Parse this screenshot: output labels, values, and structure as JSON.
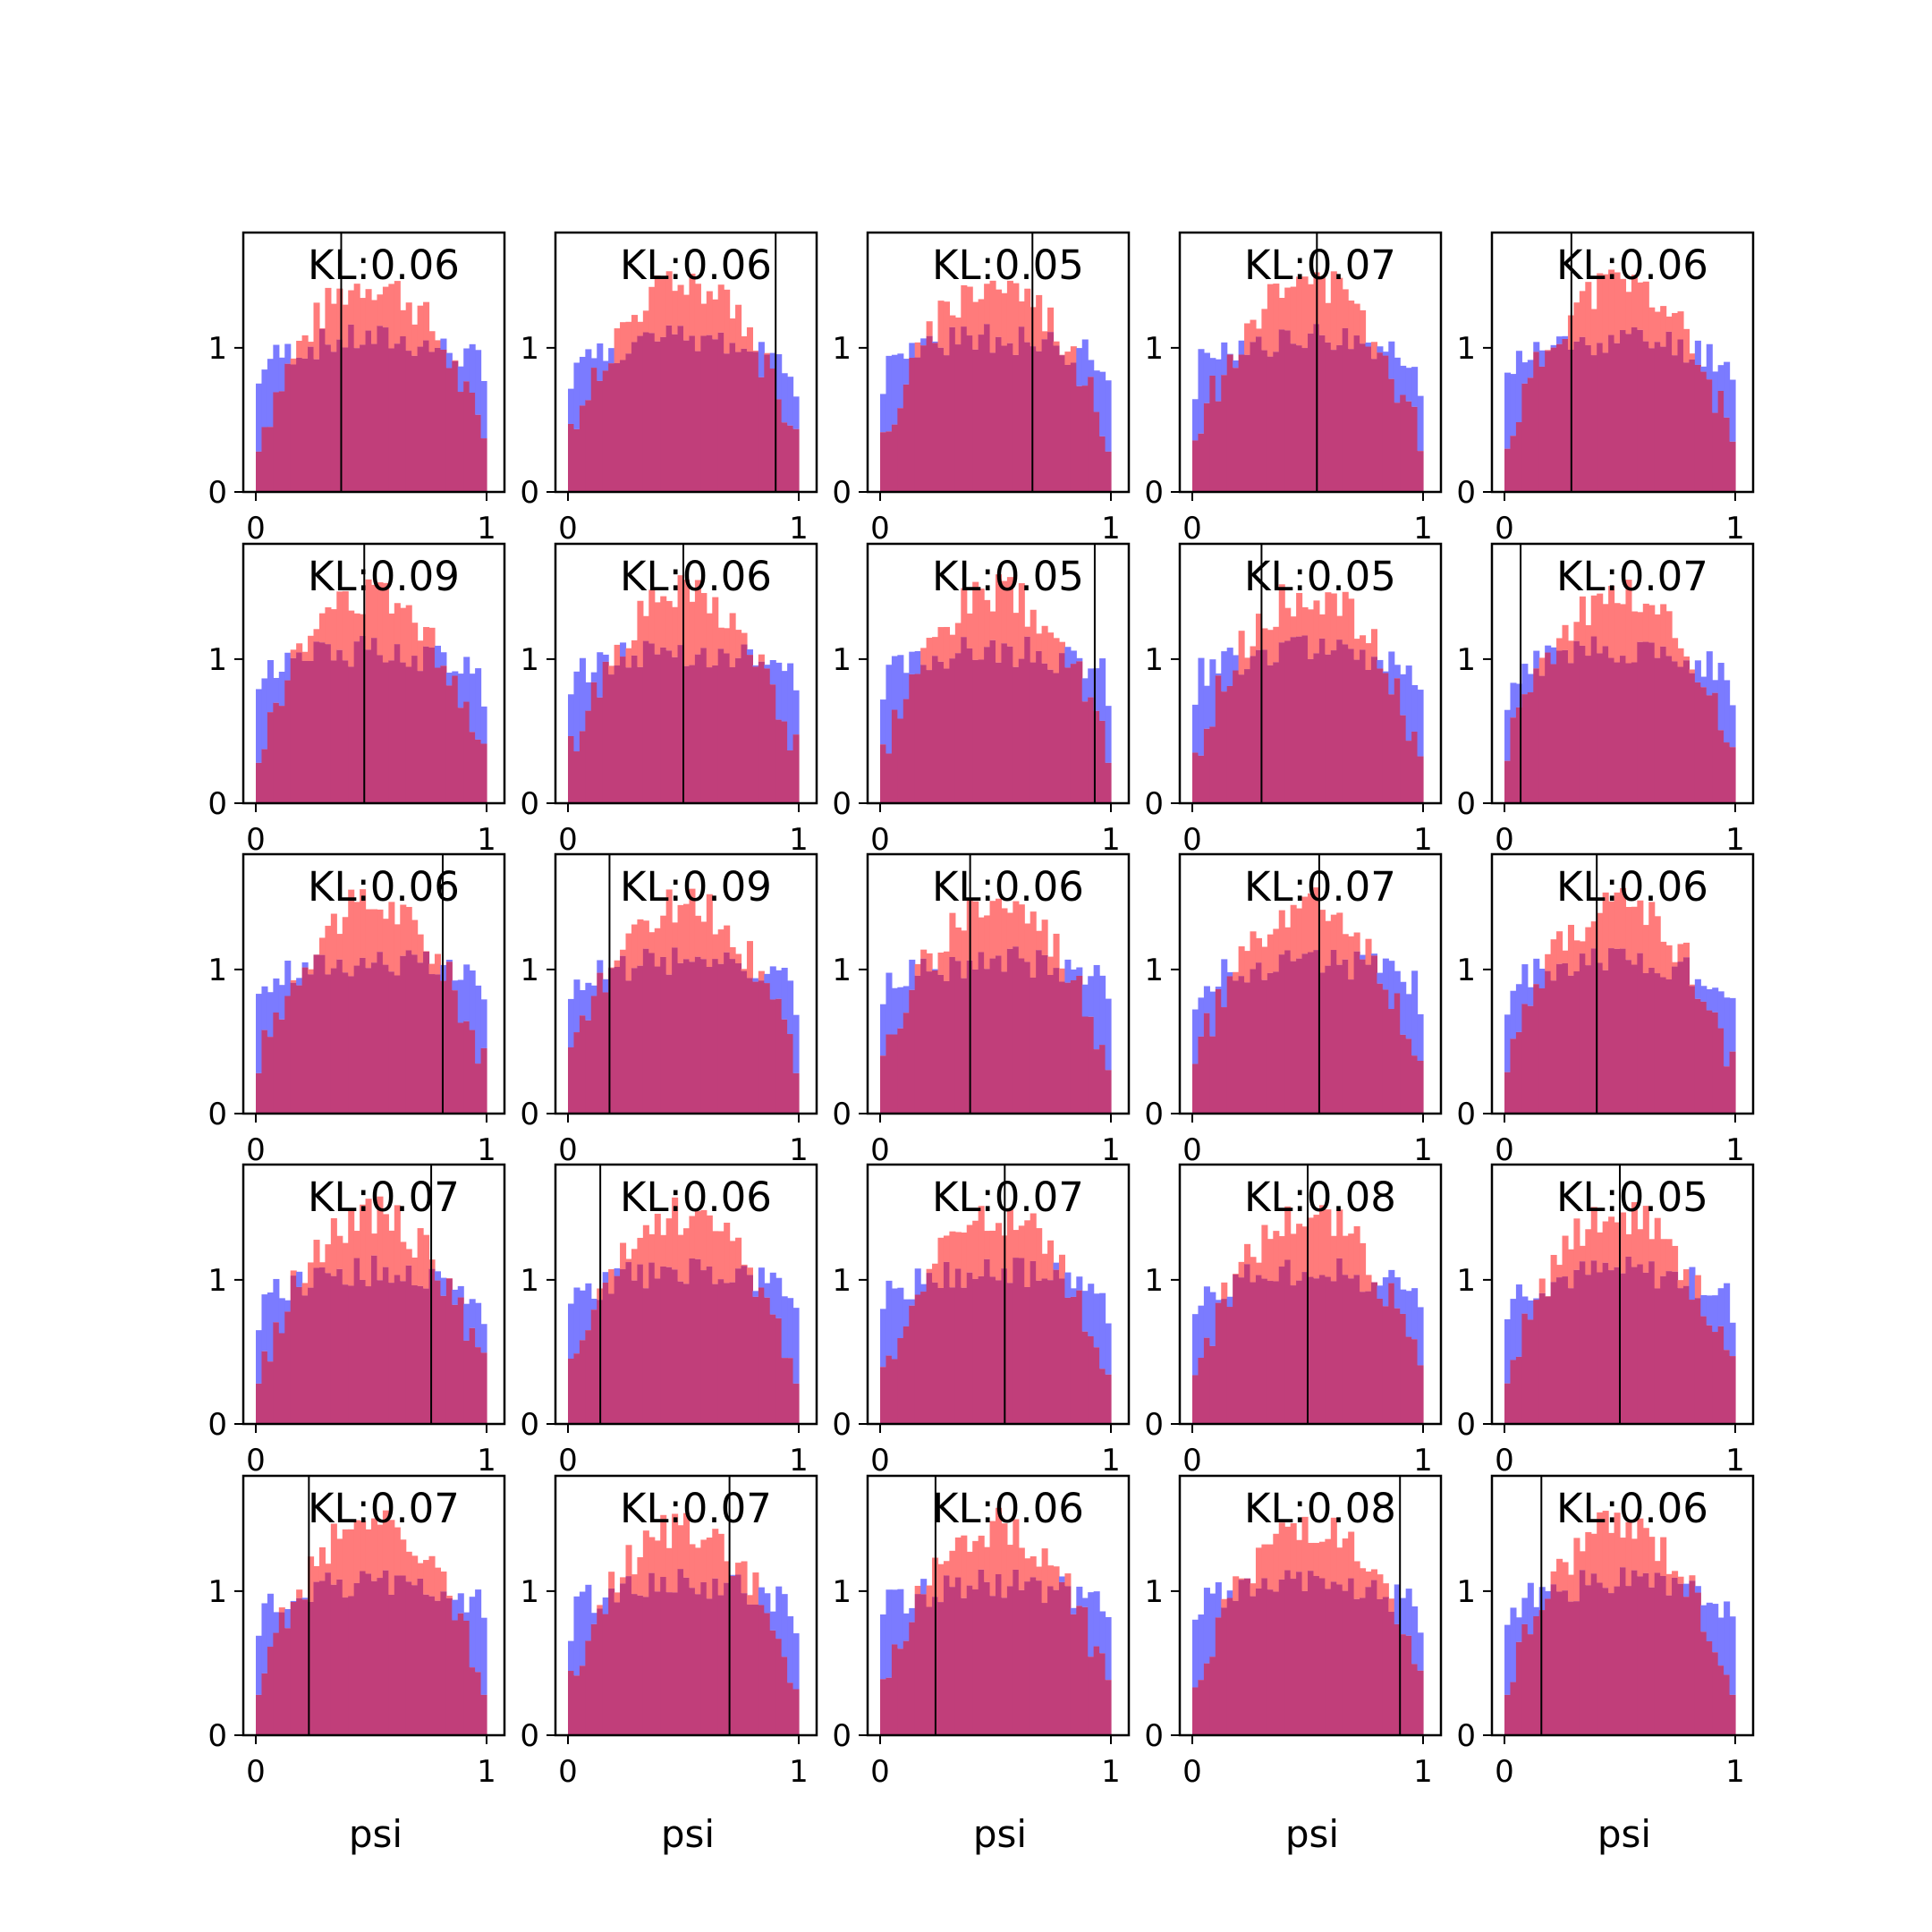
{
  "chart_data": {
    "type": "grid of overlaid histograms",
    "rows": 5,
    "cols": 5,
    "xlim": [
      0,
      1
    ],
    "ylim": [
      0,
      1.8
    ],
    "xticks": [
      "0",
      "1"
    ],
    "yticks": [
      "0",
      "1"
    ],
    "xlabel": "psi",
    "colors": {
      "blue": "#7b7bff",
      "red": "#ff7b7b",
      "overlap": "#c13e7a",
      "marker_line": "#000000"
    },
    "panels": [
      {
        "kl": "KL:0.06",
        "marker": 0.37
      },
      {
        "kl": "KL:0.06",
        "marker": 0.9
      },
      {
        "kl": "KL:0.05",
        "marker": 0.66
      },
      {
        "kl": "KL:0.07",
        "marker": 0.54
      },
      {
        "kl": "KL:0.06",
        "marker": 0.29
      },
      {
        "kl": "KL:0.09",
        "marker": 0.47
      },
      {
        "kl": "KL:0.06",
        "marker": 0.5
      },
      {
        "kl": "KL:0.05",
        "marker": 0.93
      },
      {
        "kl": "KL:0.05",
        "marker": 0.3
      },
      {
        "kl": "KL:0.07",
        "marker": 0.07
      },
      {
        "kl": "KL:0.06",
        "marker": 0.81
      },
      {
        "kl": "KL:0.09",
        "marker": 0.18
      },
      {
        "kl": "KL:0.06",
        "marker": 0.39
      },
      {
        "kl": "KL:0.07",
        "marker": 0.55
      },
      {
        "kl": "KL:0.06",
        "marker": 0.4
      },
      {
        "kl": "KL:0.07",
        "marker": 0.76
      },
      {
        "kl": "KL:0.06",
        "marker": 0.14
      },
      {
        "kl": "KL:0.07",
        "marker": 0.54
      },
      {
        "kl": "KL:0.08",
        "marker": 0.5
      },
      {
        "kl": "KL:0.05",
        "marker": 0.5
      },
      {
        "kl": "KL:0.07",
        "marker": 0.23
      },
      {
        "kl": "KL:0.07",
        "marker": 0.7
      },
      {
        "kl": "KL:0.06",
        "marker": 0.24
      },
      {
        "kl": "KL:0.08",
        "marker": 0.9
      },
      {
        "kl": "KL:0.06",
        "marker": 0.16
      }
    ]
  }
}
